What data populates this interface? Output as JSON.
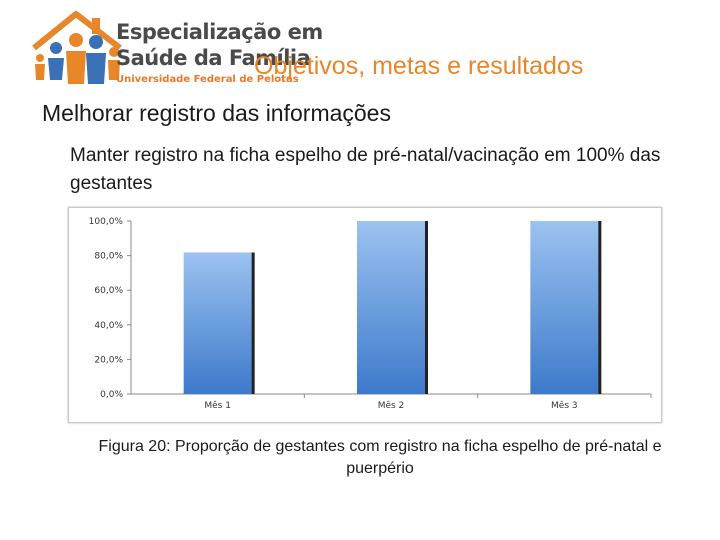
{
  "logo": {
    "line1": "Especialização em",
    "line2": "Saúde da Família",
    "line3": "Universidade Federal de Pelotas"
  },
  "slide_title": "Objetivos, metas e resultados",
  "heading": "Melhorar registro das informações",
  "subheading": "Manter registro na ficha espelho de pré-natal/vacinação em 100% das gestantes",
  "caption": "Figura 20: Proporção de gestantes com registro na ficha espelho de pré-natal e puerpério",
  "colors": {
    "accent": "#e8862a",
    "bar_top": "#9cc2f0",
    "bar_bottom": "#3d7acb"
  },
  "chart_data": {
    "type": "bar",
    "categories": [
      "Mês 1",
      "Mês 2",
      "Mês 3"
    ],
    "values": [
      81.8,
      100.0,
      100.0
    ],
    "ylim": [
      0,
      100
    ],
    "yticks": [
      "0,0%",
      "20,0%",
      "40,0%",
      "60,0%",
      "80,0%",
      "100,0%"
    ],
    "ytick_values": [
      0,
      20,
      40,
      60,
      80,
      100
    ],
    "grid": false,
    "legend": "none"
  }
}
